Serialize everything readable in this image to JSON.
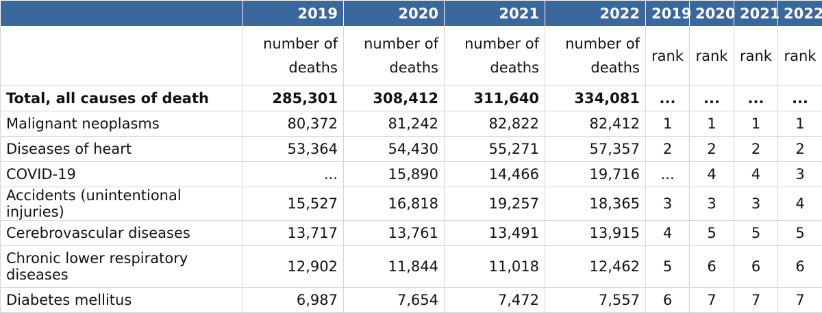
{
  "header": {
    "years": [
      "2019",
      "2020",
      "2021",
      "2022"
    ],
    "rank_years": [
      "2019",
      "2020",
      "2021",
      "2022"
    ]
  },
  "subheader": {
    "deaths_label": "number of deaths",
    "rank_label": "rank"
  },
  "rows": [
    {
      "label": "Total, all causes of death",
      "deaths": [
        "285,301",
        "308,412",
        "311,640",
        "334,081"
      ],
      "ranks": [
        "...",
        "...",
        "...",
        "..."
      ]
    },
    {
      "label": "Malignant neoplasms",
      "deaths": [
        "80,372",
        "81,242",
        "82,822",
        "82,412"
      ],
      "ranks": [
        "1",
        "1",
        "1",
        "1"
      ]
    },
    {
      "label": "Diseases of heart",
      "deaths": [
        "53,364",
        "54,430",
        "55,271",
        "57,357"
      ],
      "ranks": [
        "2",
        "2",
        "2",
        "2"
      ]
    },
    {
      "label": "COVID-19",
      "deaths": [
        "...",
        "15,890",
        "14,466",
        "19,716"
      ],
      "ranks": [
        "...",
        "4",
        "4",
        "3"
      ]
    },
    {
      "label": "Accidents (unintentional injuries)",
      "deaths": [
        "15,527",
        "16,818",
        "19,257",
        "18,365"
      ],
      "ranks": [
        "3",
        "3",
        "3",
        "4"
      ]
    },
    {
      "label": "Cerebrovascular diseases",
      "deaths": [
        "13,717",
        "13,761",
        "13,491",
        "13,915"
      ],
      "ranks": [
        "4",
        "5",
        "5",
        "5"
      ]
    },
    {
      "label": "Chronic lower respiratory diseases",
      "deaths": [
        "12,902",
        "11,844",
        "11,018",
        "12,462"
      ],
      "ranks": [
        "5",
        "6",
        "6",
        "6"
      ]
    },
    {
      "label": "Diabetes mellitus",
      "deaths": [
        "6,987",
        "7,654",
        "7,472",
        "7,557"
      ],
      "ranks": [
        "6",
        "7",
        "7",
        "7"
      ]
    }
  ]
}
